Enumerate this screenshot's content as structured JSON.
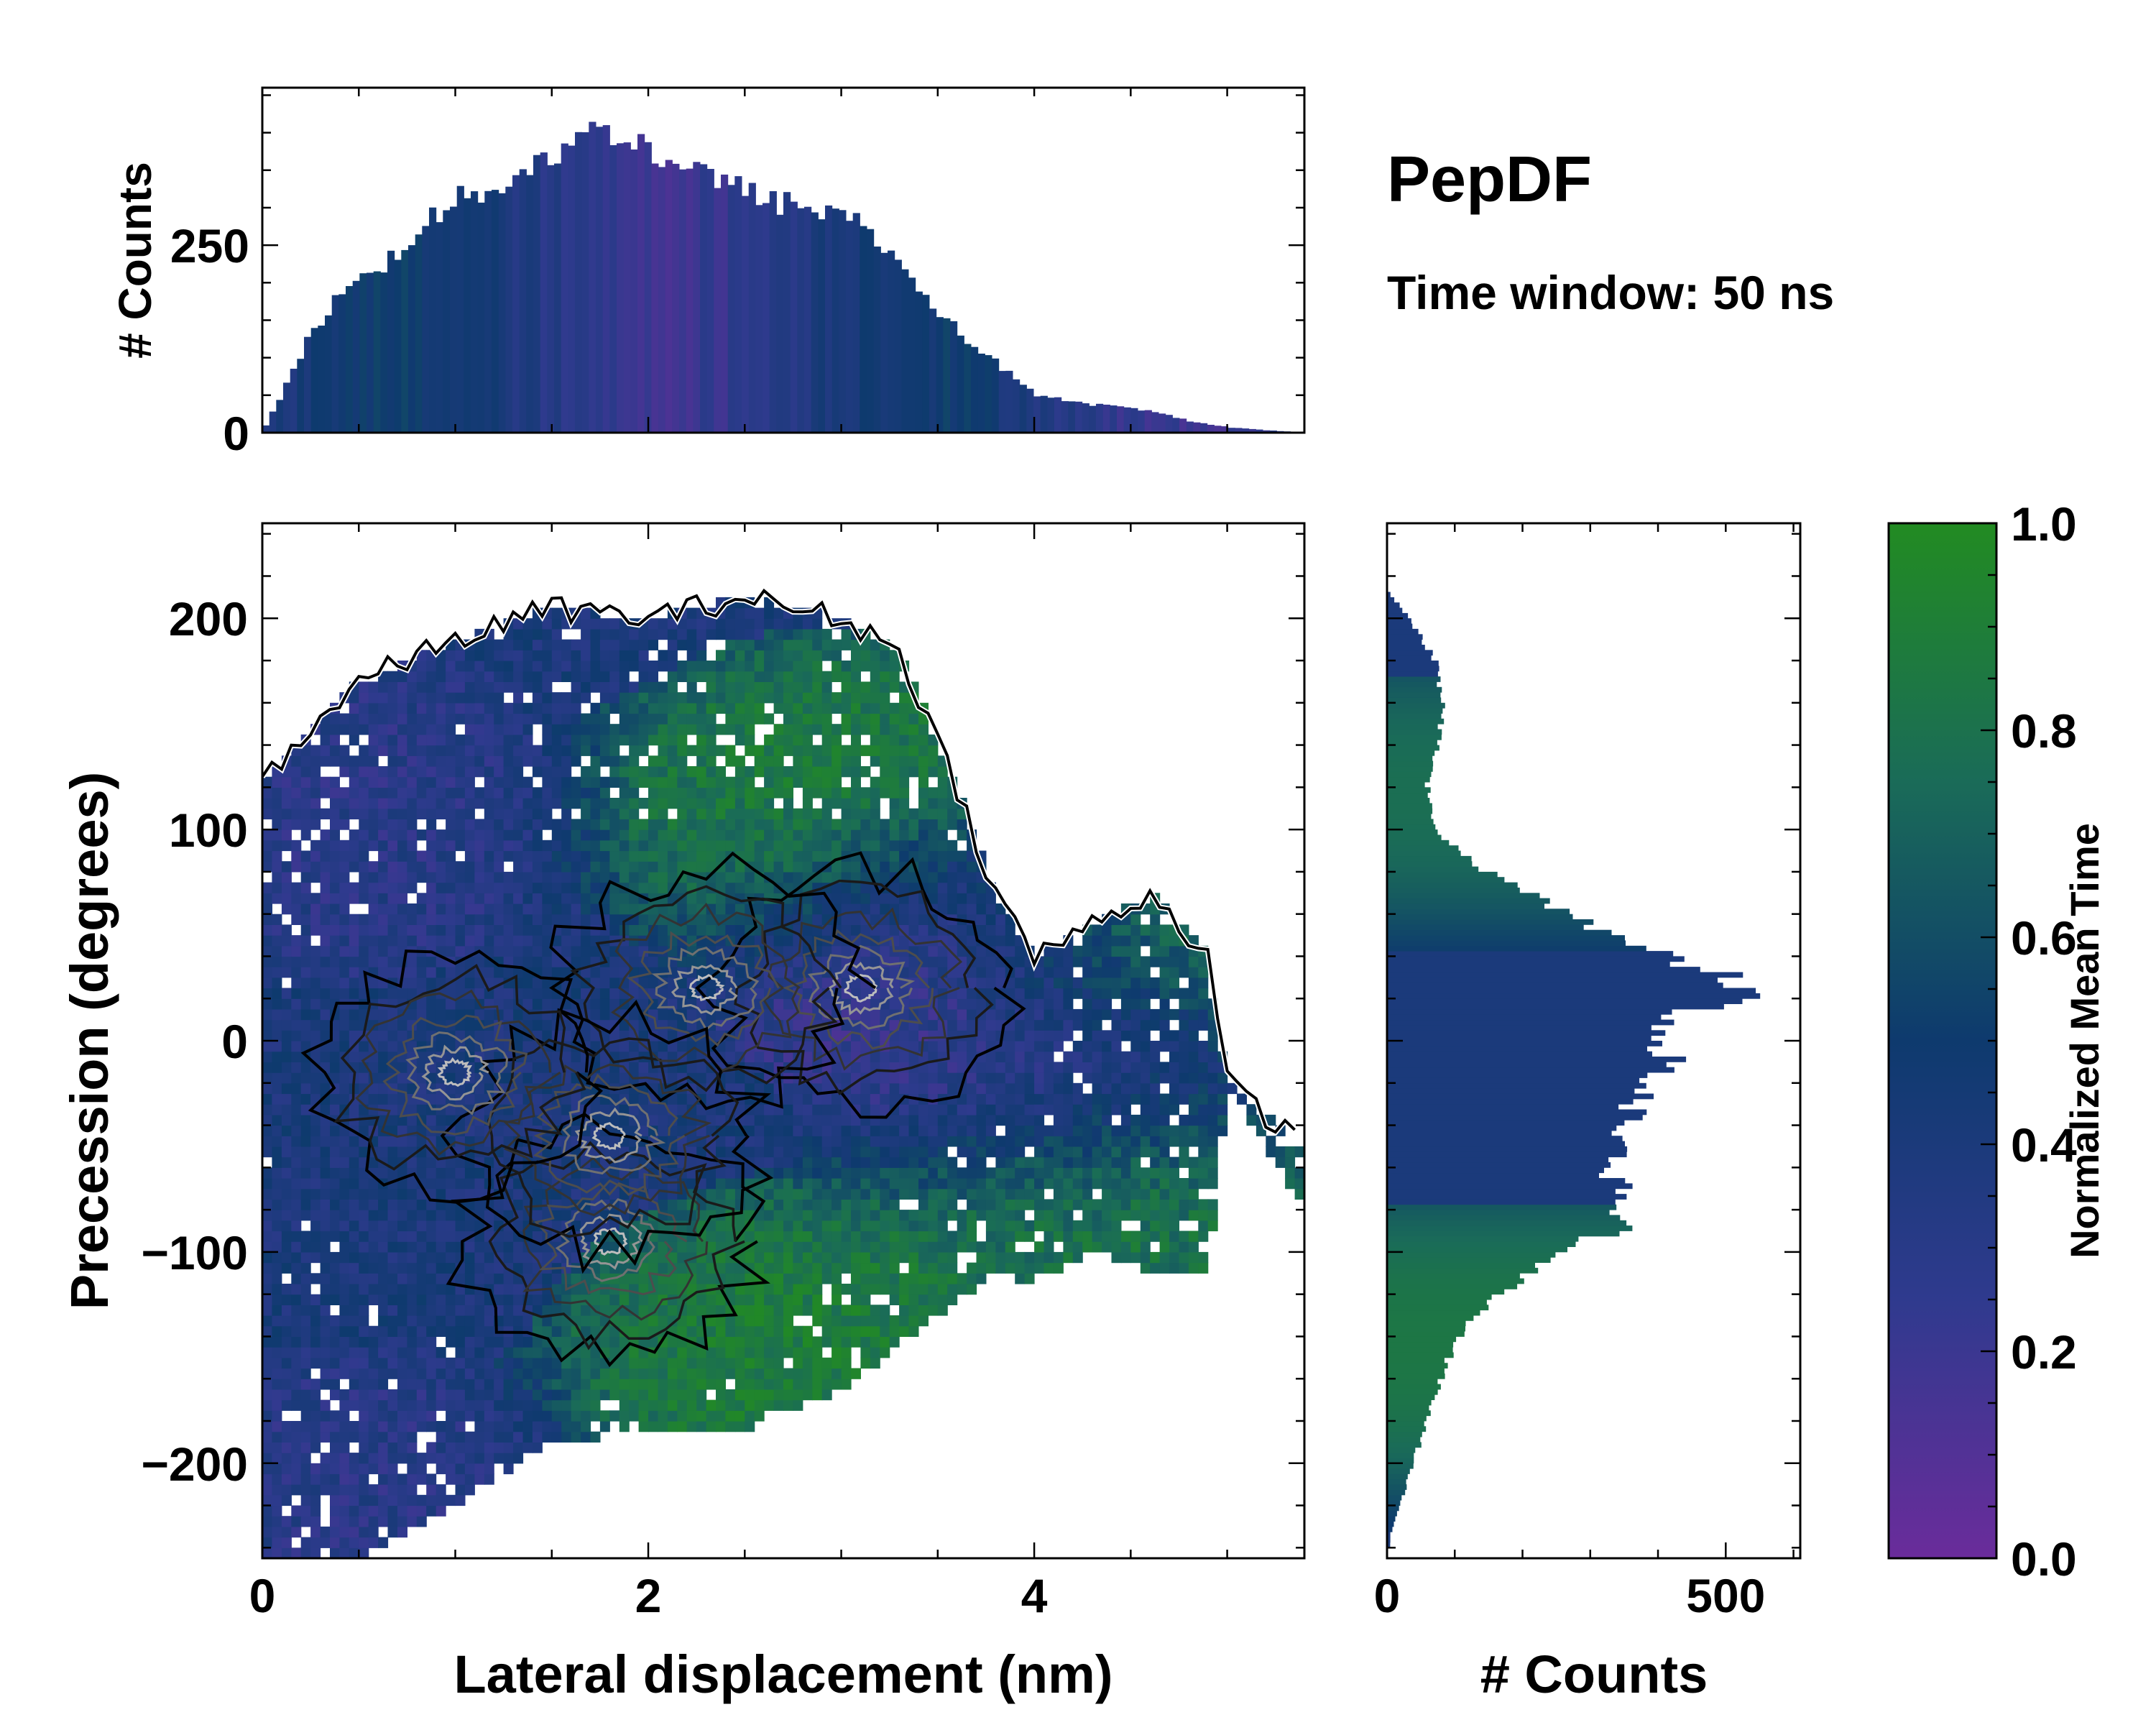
{
  "chart_data": [
    {
      "type": "histogram",
      "panel": "top-marginal",
      "ylabel": "# Counts",
      "xlim": [
        0,
        5.4
      ],
      "ylim": [
        0,
        460
      ],
      "yticks": [
        0,
        250
      ],
      "ytick_labels": [
        "0",
        "250"
      ],
      "bin_width": 0.036,
      "envelope": {
        "x": [
          0.0,
          0.1,
          0.2,
          0.3,
          0.4,
          0.6,
          0.8,
          1.0,
          1.2,
          1.4,
          1.6,
          1.8,
          2.0,
          2.2,
          2.4,
          2.6,
          2.8,
          3.0,
          3.2,
          3.4,
          3.6,
          3.8,
          4.0,
          4.2,
          4.4,
          4.6,
          4.8,
          5.0,
          5.2,
          5.4
        ],
        "counts": [
          10,
          60,
          115,
          155,
          190,
          220,
          275,
          310,
          330,
          360,
          390,
          405,
          375,
          355,
          330,
          310,
          300,
          295,
          250,
          190,
          130,
          90,
          50,
          40,
          35,
          28,
          15,
          7,
          3,
          0
        ]
      },
      "color_by": "Normalized Mean Time"
    },
    {
      "type": "heatmap",
      "panel": "main",
      "xlabel": "Lateral displacement (nm)",
      "ylabel": "Precession (degrees)",
      "xlim": [
        0,
        5.4
      ],
      "ylim": [
        -245,
        245
      ],
      "xticks": [
        0,
        2,
        4
      ],
      "xtick_labels": [
        "0",
        "2",
        "4"
      ],
      "yticks": [
        -200,
        -100,
        0,
        100,
        200
      ],
      "ytick_labels": [
        "−200",
        "−100",
        "0",
        "100",
        "200"
      ],
      "cell_size": {
        "dx": 0.05,
        "dy": 5
      },
      "color_by": "Normalized Mean Time",
      "contours": "density levels (black outer to grey inner)",
      "density_peaks": [
        {
          "x": 3.1,
          "y": 25
        },
        {
          "x": 2.3,
          "y": 25
        },
        {
          "x": 1.8,
          "y": -95
        },
        {
          "x": 1.8,
          "y": -45
        },
        {
          "x": 1.0,
          "y": -15
        }
      ],
      "time_regions": [
        {
          "x": 3.0,
          "y": 110,
          "value": 0.9
        },
        {
          "x": 4.5,
          "y": 40,
          "value": 0.95
        },
        {
          "x": 4.5,
          "y": -70,
          "value": 0.85
        },
        {
          "x": 2.8,
          "y": -150,
          "value": 0.9
        },
        {
          "x": 4.3,
          "y": -5,
          "value": 0.1
        },
        {
          "x": 3.6,
          "y": 50,
          "value": 0.15
        },
        {
          "x": 0.5,
          "y": -230,
          "value": 0.3
        },
        {
          "x": 0.3,
          "y": 110,
          "value": 0.3
        }
      ]
    },
    {
      "type": "histogram",
      "panel": "right-marginal",
      "orientation": "horizontal",
      "xlabel": "# Counts",
      "xlim": [
        0,
        610
      ],
      "xticks": [
        0,
        500
      ],
      "xtick_labels": [
        "0",
        "500"
      ],
      "ylim": [
        -245,
        245
      ],
      "bin_width": 2.5,
      "envelope": {
        "y": [
          -235,
          -220,
          -200,
          -180,
          -160,
          -140,
          -120,
          -100,
          -90,
          -80,
          -60,
          -40,
          -20,
          -10,
          0,
          10,
          20,
          30,
          40,
          50,
          60,
          70,
          80,
          90,
          100,
          120,
          140,
          160,
          180,
          200,
          210
        ],
        "counts": [
          5,
          20,
          40,
          60,
          80,
          110,
          170,
          270,
          340,
          350,
          330,
          350,
          400,
          430,
          380,
          410,
          540,
          500,
          400,
          320,
          260,
          200,
          140,
          100,
          70,
          60,
          80,
          80,
          70,
          30,
          5
        ]
      },
      "color_by": "Normalized Mean Time"
    },
    {
      "type": "colorbar",
      "label": "Normalized Mean Time",
      "range": [
        0.0,
        1.0
      ],
      "ticks": [
        0.0,
        0.2,
        0.4,
        0.6,
        0.8,
        1.0
      ],
      "tick_labels": [
        "0.0",
        "0.2",
        "0.4",
        "0.6",
        "0.8",
        "1.0"
      ],
      "colormap": [
        "#6a2c9b",
        "#2f3a8e",
        "#0e3a6e",
        "#1a6b58",
        "#228b22"
      ]
    }
  ],
  "annotation": {
    "title": "PepDF",
    "subtitle": "Time window: 50 ns"
  }
}
